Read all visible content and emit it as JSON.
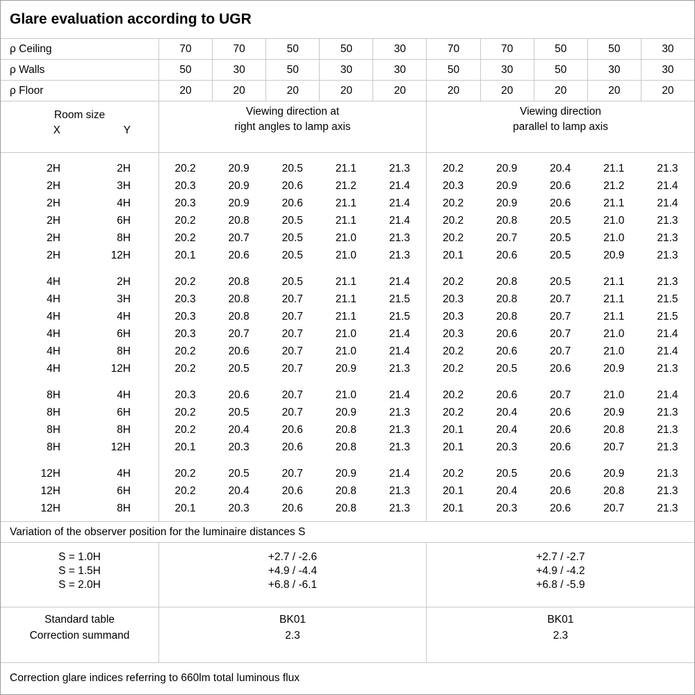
{
  "title": "Glare evaluation according to UGR",
  "reflectance_rows": [
    {
      "label": "ρ Ceiling",
      "values": [
        "70",
        "70",
        "50",
        "50",
        "30",
        "70",
        "70",
        "50",
        "50",
        "30"
      ]
    },
    {
      "label": "ρ Walls",
      "values": [
        "50",
        "30",
        "50",
        "30",
        "30",
        "50",
        "30",
        "50",
        "30",
        "30"
      ]
    },
    {
      "label": "ρ Floor",
      "values": [
        "20",
        "20",
        "20",
        "20",
        "20",
        "20",
        "20",
        "20",
        "20",
        "20"
      ]
    }
  ],
  "header": {
    "room_size_label": "Room size",
    "x_label": "X",
    "y_label": "Y",
    "group1_line1": "Viewing direction at",
    "group1_line2": "right angles to lamp axis",
    "group2_line1": "Viewing direction",
    "group2_line2": "parallel to lamp axis"
  },
  "ugr_groups": [
    {
      "rows": [
        {
          "x": "2H",
          "y": "2H",
          "right_angles": [
            "20.2",
            "20.9",
            "20.5",
            "21.1",
            "21.3"
          ],
          "parallel": [
            "20.2",
            "20.9",
            "20.4",
            "21.1",
            "21.3"
          ]
        },
        {
          "x": "2H",
          "y": "3H",
          "right_angles": [
            "20.3",
            "20.9",
            "20.6",
            "21.2",
            "21.4"
          ],
          "parallel": [
            "20.3",
            "20.9",
            "20.6",
            "21.2",
            "21.4"
          ]
        },
        {
          "x": "2H",
          "y": "4H",
          "right_angles": [
            "20.3",
            "20.9",
            "20.6",
            "21.1",
            "21.4"
          ],
          "parallel": [
            "20.2",
            "20.9",
            "20.6",
            "21.1",
            "21.4"
          ]
        },
        {
          "x": "2H",
          "y": "6H",
          "right_angles": [
            "20.2",
            "20.8",
            "20.5",
            "21.1",
            "21.4"
          ],
          "parallel": [
            "20.2",
            "20.8",
            "20.5",
            "21.0",
            "21.3"
          ]
        },
        {
          "x": "2H",
          "y": "8H",
          "right_angles": [
            "20.2",
            "20.7",
            "20.5",
            "21.0",
            "21.3"
          ],
          "parallel": [
            "20.2",
            "20.7",
            "20.5",
            "21.0",
            "21.3"
          ]
        },
        {
          "x": "2H",
          "y": "12H",
          "right_angles": [
            "20.1",
            "20.6",
            "20.5",
            "21.0",
            "21.3"
          ],
          "parallel": [
            "20.1",
            "20.6",
            "20.5",
            "20.9",
            "21.3"
          ]
        }
      ]
    },
    {
      "rows": [
        {
          "x": "4H",
          "y": "2H",
          "right_angles": [
            "20.2",
            "20.8",
            "20.5",
            "21.1",
            "21.4"
          ],
          "parallel": [
            "20.2",
            "20.8",
            "20.5",
            "21.1",
            "21.3"
          ]
        },
        {
          "x": "4H",
          "y": "3H",
          "right_angles": [
            "20.3",
            "20.8",
            "20.7",
            "21.1",
            "21.5"
          ],
          "parallel": [
            "20.3",
            "20.8",
            "20.7",
            "21.1",
            "21.5"
          ]
        },
        {
          "x": "4H",
          "y": "4H",
          "right_angles": [
            "20.3",
            "20.8",
            "20.7",
            "21.1",
            "21.5"
          ],
          "parallel": [
            "20.3",
            "20.8",
            "20.7",
            "21.1",
            "21.5"
          ]
        },
        {
          "x": "4H",
          "y": "6H",
          "right_angles": [
            "20.3",
            "20.7",
            "20.7",
            "21.0",
            "21.4"
          ],
          "parallel": [
            "20.3",
            "20.6",
            "20.7",
            "21.0",
            "21.4"
          ]
        },
        {
          "x": "4H",
          "y": "8H",
          "right_angles": [
            "20.2",
            "20.6",
            "20.7",
            "21.0",
            "21.4"
          ],
          "parallel": [
            "20.2",
            "20.6",
            "20.7",
            "21.0",
            "21.4"
          ]
        },
        {
          "x": "4H",
          "y": "12H",
          "right_angles": [
            "20.2",
            "20.5",
            "20.7",
            "20.9",
            "21.3"
          ],
          "parallel": [
            "20.2",
            "20.5",
            "20.6",
            "20.9",
            "21.3"
          ]
        }
      ]
    },
    {
      "rows": [
        {
          "x": "8H",
          "y": "4H",
          "right_angles": [
            "20.3",
            "20.6",
            "20.7",
            "21.0",
            "21.4"
          ],
          "parallel": [
            "20.2",
            "20.6",
            "20.7",
            "21.0",
            "21.4"
          ]
        },
        {
          "x": "8H",
          "y": "6H",
          "right_angles": [
            "20.2",
            "20.5",
            "20.7",
            "20.9",
            "21.3"
          ],
          "parallel": [
            "20.2",
            "20.4",
            "20.6",
            "20.9",
            "21.3"
          ]
        },
        {
          "x": "8H",
          "y": "8H",
          "right_angles": [
            "20.2",
            "20.4",
            "20.6",
            "20.8",
            "21.3"
          ],
          "parallel": [
            "20.1",
            "20.4",
            "20.6",
            "20.8",
            "21.3"
          ]
        },
        {
          "x": "8H",
          "y": "12H",
          "right_angles": [
            "20.1",
            "20.3",
            "20.6",
            "20.8",
            "21.3"
          ],
          "parallel": [
            "20.1",
            "20.3",
            "20.6",
            "20.7",
            "21.3"
          ]
        }
      ]
    },
    {
      "rows": [
        {
          "x": "12H",
          "y": "4H",
          "right_angles": [
            "20.2",
            "20.5",
            "20.7",
            "20.9",
            "21.4"
          ],
          "parallel": [
            "20.2",
            "20.5",
            "20.6",
            "20.9",
            "21.3"
          ]
        },
        {
          "x": "12H",
          "y": "6H",
          "right_angles": [
            "20.2",
            "20.4",
            "20.6",
            "20.8",
            "21.3"
          ],
          "parallel": [
            "20.1",
            "20.4",
            "20.6",
            "20.8",
            "21.3"
          ]
        },
        {
          "x": "12H",
          "y": "8H",
          "right_angles": [
            "20.1",
            "20.3",
            "20.6",
            "20.8",
            "21.3"
          ],
          "parallel": [
            "20.1",
            "20.3",
            "20.6",
            "20.7",
            "21.3"
          ]
        }
      ]
    }
  ],
  "variation_note": "Variation of the observer position for the luminaire distances S",
  "variation": {
    "labels": [
      "S = 1.0H",
      "S = 1.5H",
      "S = 2.0H"
    ],
    "right_angles": [
      "+2.7 / -2.6",
      "+4.9 / -4.4",
      "+6.8 / -6.1"
    ],
    "parallel": [
      "+2.7 / -2.7",
      "+4.9 / -4.2",
      "+6.8 / -5.9"
    ]
  },
  "summary": {
    "row_labels": [
      "Standard table",
      "Correction summand"
    ],
    "right_angles": [
      "BK01",
      "2.3"
    ],
    "parallel": [
      "BK01",
      "2.3"
    ]
  },
  "footer_note": "Correction glare indices referring to 660lm total luminous flux",
  "colors": {
    "grid_line": "#c8c8c8",
    "outer_border": "#9a9a9a",
    "text": "#000000"
  }
}
